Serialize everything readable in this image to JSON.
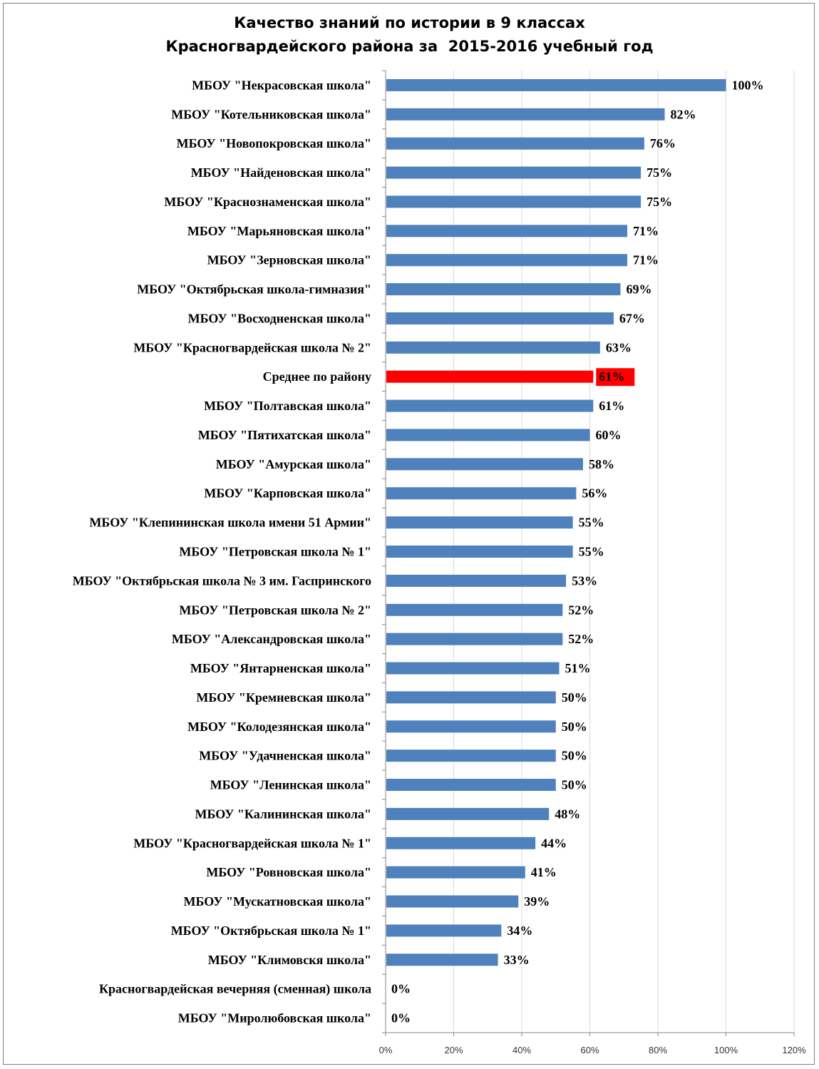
{
  "chart_data": {
    "type": "bar",
    "orientation": "horizontal",
    "title_lines": [
      "Качество знаний по истории в 9 классах",
      "Красногвардейского района за  2015-2016 учебный год"
    ],
    "categories": [
      "МБОУ \"Некрасовская школа\"",
      "МБОУ \"Котельниковская школа\"",
      "МБОУ \"Новопокровская школа\"",
      "МБОУ \"Найденовская школа\"",
      "МБОУ \"Краснознаменская школа\"",
      "МБОУ \"Марьяновская школа\"",
      "МБОУ \"Зерновская школа\"",
      "МБОУ \"Октябрьская школа-гимназия\"",
      "МБОУ \"Восходненская школа\"",
      "МБОУ \"Красногвардейская школа № 2\"",
      "Среднее по району",
      "МБОУ \"Полтавская школа\"",
      "МБОУ \"Пятихатская школа\"",
      "МБОУ \"Амурская школа\"",
      "МБОУ \"Карповская школа\"",
      "МБОУ \"Клепининская школа имени 51 Армии\"",
      "МБОУ \"Петровская школа № 1\"",
      "МБОУ \"Октябрьская школа № 3 им. Гаспринского",
      "МБОУ \"Петровская школа № 2\"",
      "МБОУ \"Александровская школа\"",
      "МБОУ \"Янтарненская школа\"",
      "МБОУ \"Кремневская школа\"",
      "МБОУ \"Колодезянская школа\"",
      "МБОУ \"Удачненская школа\"",
      "МБОУ \"Ленинская школа\"",
      "МБОУ \"Калининская школа\"",
      "МБОУ \"Красногвардейская школа № 1\"",
      "МБОУ \"Ровновская школа\"",
      "МБОУ \"Мускатновская школа\"",
      "МБОУ \"Октябрьская школа № 1\"",
      "МБОУ \"Климовскя школа\"",
      "Красногвардейская вечерняя (сменная) школа",
      "МБОУ \"Миролюбовская школа\""
    ],
    "values": [
      100,
      82,
      76,
      75,
      75,
      71,
      71,
      69,
      67,
      63,
      61,
      61,
      60,
      58,
      56,
      55,
      55,
      53,
      52,
      52,
      51,
      50,
      50,
      50,
      50,
      48,
      44,
      41,
      39,
      34,
      33,
      0,
      0
    ],
    "value_labels": [
      "100%",
      "82%",
      "76%",
      "75%",
      "75%",
      "71%",
      "71%",
      "69%",
      "67%",
      "63%",
      "61%",
      "61%",
      "60%",
      "58%",
      "56%",
      "55%",
      "55%",
      "53%",
      "52%",
      "52%",
      "51%",
      "50%",
      "50%",
      "50%",
      "50%",
      "48%",
      "44%",
      "41%",
      "39%",
      "34%",
      "33%",
      "0%",
      "0%"
    ],
    "highlight_index": 10,
    "xlim": [
      0,
      120
    ],
    "x_ticks": [
      0,
      20,
      40,
      60,
      80,
      100,
      120
    ],
    "x_tick_labels": [
      "0%",
      "20%",
      "40%",
      "60%",
      "80%",
      "100%",
      "120%"
    ],
    "grid": "vertical",
    "legend": "none",
    "colors": {
      "bar": "#4f81bd",
      "highlight": "#ff0000",
      "grid": "#d9d9d9",
      "axis": "#868686"
    }
  }
}
